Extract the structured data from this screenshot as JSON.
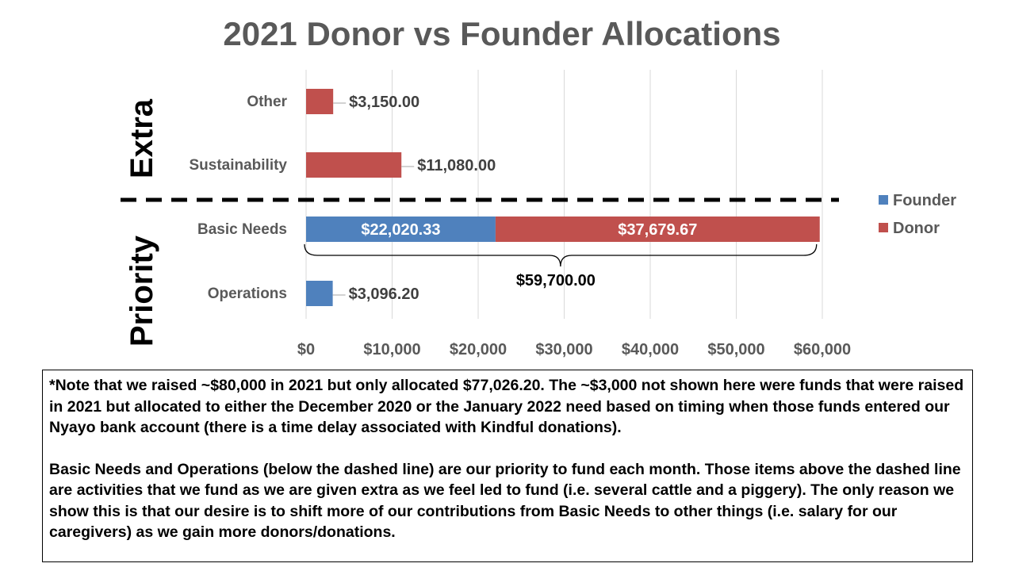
{
  "chart_data": {
    "type": "bar",
    "orientation": "horizontal",
    "stacked": true,
    "title": "2021 Donor vs Founder Allocations",
    "categories": [
      "Other",
      "Sustainability",
      "Basic Needs",
      "Operations"
    ],
    "series": [
      {
        "name": "Founder",
        "color": "#4F81BD",
        "values": [
          0,
          0,
          22020.33,
          3096.2
        ]
      },
      {
        "name": "Donor",
        "color": "#C0504D",
        "values": [
          3150.0,
          11080.0,
          37679.67,
          0
        ]
      }
    ],
    "data_labels": [
      {
        "category": "Other",
        "series": "Donor",
        "text": "$3,150.00"
      },
      {
        "category": "Sustainability",
        "series": "Donor",
        "text": "$11,080.00"
      },
      {
        "category": "Basic Needs",
        "series": "Founder",
        "text": "$22,020.33"
      },
      {
        "category": "Basic Needs",
        "series": "Donor",
        "text": "$37,679.67"
      },
      {
        "category": "Operations",
        "series": "Founder",
        "text": "$3,096.20"
      }
    ],
    "x_ticks": [
      "$0",
      "$10,000",
      "$20,000",
      "$30,000",
      "$40,000",
      "$50,000",
      "$60,000"
    ],
    "xlim": [
      0,
      60000
    ],
    "grid": "vertical",
    "legend": "right",
    "groups": [
      {
        "label": "Extra",
        "categories": [
          "Other",
          "Sustainability"
        ]
      },
      {
        "label": "Priority",
        "categories": [
          "Basic Needs",
          "Operations"
        ]
      }
    ],
    "total_annotation": {
      "category": "Basic Needs",
      "value": 59700.0,
      "text": "$59,700.00"
    }
  },
  "note": {
    "paragraph1": "*Note that we raised ~$80,000 in 2021 but only allocated $77,026.20. The ~$3,000 not shown here were funds that were raised in 2021 but allocated to either the December 2020 or the January 2022 need based on timing when those funds entered our Nyayo bank account (there is a time delay associated with Kindful donations).",
    "paragraph2": "Basic Needs and Operations (below the dashed line) are our priority to fund each month. Those items above the dashed line are activities that we fund as we are given extra as we feel led to fund (i.e. several cattle and a piggery). The only reason we show this is that our desire is to shift more of our contributions from Basic Needs to other things (i.e. salary for our caregivers) as we gain more donors/donations."
  }
}
